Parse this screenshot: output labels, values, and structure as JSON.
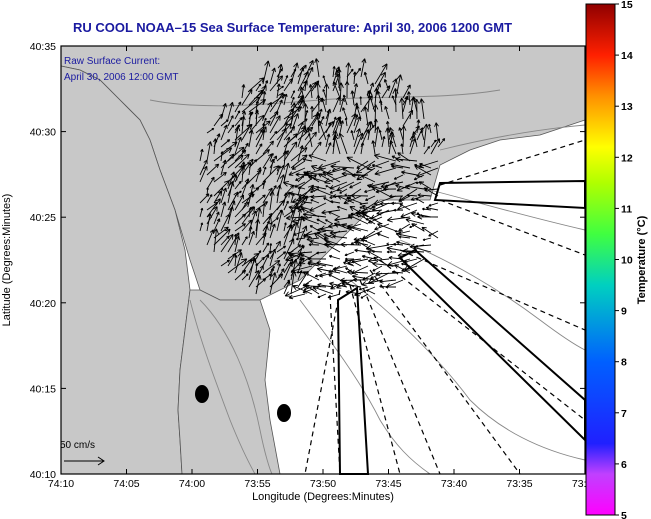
{
  "title": "RU COOL  NOAA–15  Sea Surface Temperature:  April 30, 2006 1200 GMT",
  "overlay": {
    "line1": "Raw Surface Current:",
    "line2": "April 30, 2006 12:00 GMT"
  },
  "axes": {
    "xlabel": "Longitude (Degrees:Minutes)",
    "ylabel": "Latitude (Degrees:Minutes)",
    "x_ticks": [
      "74:10",
      "74:05",
      "74:00",
      "73:55",
      "73:50",
      "73:45",
      "73:40",
      "73:35",
      "73:30"
    ],
    "y_ticks": [
      "40:10",
      "40:15",
      "40:20",
      "40:25",
      "40:30",
      "40:35"
    ]
  },
  "scale_label": "50 cm/s",
  "colorbar": {
    "label": "Temperature (°C)",
    "min": 5,
    "max": 15,
    "ticks": [
      "15",
      "14",
      "13",
      "12",
      "11",
      "10",
      "9",
      "8",
      "7",
      "6",
      "5"
    ]
  },
  "colors": {
    "title": "#1a1aa0",
    "overlay": "#1a1aa0",
    "land": "#c8c8c8",
    "water": "#ffffff",
    "vectors": "#000000"
  }
}
